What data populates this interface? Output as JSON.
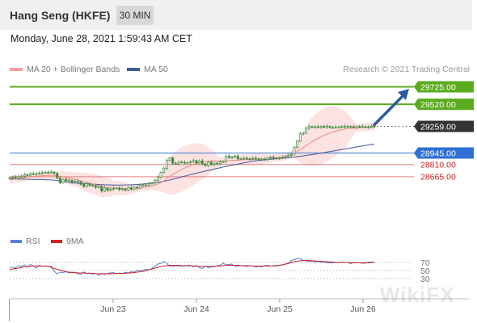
{
  "header": {
    "title": "Hang Seng (HKFE)",
    "interval": "30 MIN",
    "datetime": "Monday, June 28, 2021 1:59:43 AM CET"
  },
  "legend": {
    "ma20_label": "MA 20 + Bollinger Bands",
    "ma50_label": "MA 50",
    "credit": "Research © 2021 Trading Central"
  },
  "rsi_legend": {
    "rsi_label": "RSI",
    "ma_label": "9MA"
  },
  "watermark": "WikiFX",
  "colors": {
    "candle": "#3d8a3d",
    "bollinger": "#f8a5a5",
    "ma20": "#ee8a8a",
    "ma50": "#3d5a99",
    "green_level": "#5aab1e",
    "blue_level": "#5a8fd6",
    "red_level": "#e08080",
    "current_price_bg": "#333333",
    "arrow": "#2b5ba3",
    "rsi": "#5a7fd6",
    "rsi_ma": "#cc2222"
  },
  "chart_data": [
    {
      "type": "line",
      "name": "price",
      "x_ticks": [
        "Jun 23",
        "Jun 24",
        "Jun 25",
        "Jun 26"
      ],
      "ylim": [
        28500,
        29800
      ],
      "levels": [
        {
          "label": "29725.00",
          "value": 29725,
          "kind": "target-resistance"
        },
        {
          "label": "29520.00",
          "value": 29520,
          "kind": "resistance"
        },
        {
          "label": "29259.00",
          "value": 29259,
          "kind": "current-price"
        },
        {
          "label": "28945.00",
          "value": 28945,
          "kind": "pivot"
        },
        {
          "label": "28810.00",
          "value": 28810,
          "kind": "support"
        },
        {
          "label": "28665.00",
          "value": 28665,
          "kind": "support"
        }
      ],
      "close": [
        28652,
        28660,
        28648,
        28670,
        28672,
        28690,
        28682,
        28700,
        28695,
        28702,
        28708,
        28712,
        28718,
        28714,
        28720,
        28706,
        28650,
        28596,
        28636,
        28620,
        28624,
        28601,
        28612,
        28607,
        28575,
        28552,
        28583,
        28564,
        28561,
        28540,
        28549,
        28496,
        28530,
        28505,
        28519,
        28528,
        28533,
        28514,
        28523,
        28508,
        28535,
        28519,
        28543,
        28532,
        28565,
        28569,
        28567,
        28583,
        28591,
        28624,
        28659,
        28716,
        28766,
        28857,
        28888,
        28822,
        28818,
        28840,
        28835,
        28833,
        28833,
        28843,
        28855,
        28827,
        28852,
        28818,
        28797,
        28836,
        28809,
        28825,
        28820,
        28839,
        28846,
        28908,
        28891,
        28899,
        28908,
        28875,
        28880,
        28883,
        28878,
        28874,
        28885,
        28878,
        28869,
        28870,
        28868,
        28888,
        28895,
        28885,
        28882,
        28886,
        28893,
        28906,
        28918,
        28929,
        29012,
        29085,
        29172,
        29179,
        29236,
        29256,
        29250,
        29254,
        29248,
        29260,
        29247,
        29259,
        29246,
        29247,
        29248,
        29254,
        29252,
        29260,
        29253,
        29256,
        29244,
        29257,
        29254,
        29256,
        29252,
        29249,
        29261,
        29259
      ],
      "ma50": [
        28640,
        28640,
        28640,
        28639,
        28638,
        28637,
        28636,
        28635,
        28634,
        28633,
        28632,
        28631,
        28630,
        28629,
        28627,
        28625,
        28620,
        28615,
        28610,
        28605,
        28600,
        28595,
        28590,
        28588,
        28586,
        28584,
        28582,
        28580,
        28578,
        28576,
        28574,
        28572,
        28570,
        28569,
        28568,
        28568,
        28567,
        28567,
        28567,
        28568,
        28569,
        28570,
        28572,
        28574,
        28577,
        28580,
        28583,
        28587,
        28591,
        28595,
        28600,
        28606,
        28612,
        28619,
        28627,
        28636,
        28645,
        28654,
        28663,
        28672,
        28681,
        28690,
        28699,
        28708,
        28716,
        28724,
        28732,
        28740,
        28748,
        28756,
        28764,
        28772,
        28780,
        28787,
        28794,
        28801,
        28808,
        28815,
        28822,
        28829,
        28836,
        28843,
        28849,
        28854,
        28858,
        28862,
        28866,
        28869,
        28872,
        28875,
        28878,
        28881,
        28884,
        28887,
        28890,
        28894,
        28898,
        28902,
        28906,
        28911,
        28916,
        28921,
        28926,
        28932,
        28938,
        28944,
        28950,
        28956,
        28962,
        28968,
        28974,
        28980,
        28986,
        28992,
        28998,
        29004,
        29010,
        29016,
        29022,
        29028,
        29034,
        29040,
        29046,
        29052
      ],
      "ma20": [
        28630,
        28635,
        28640,
        28645,
        28650,
        28655,
        28660,
        28665,
        28668,
        28672,
        28675,
        28678,
        28680,
        28682,
        28683,
        28681,
        28676,
        28670,
        28664,
        28656,
        28650,
        28643,
        28635,
        28628,
        28618,
        28607,
        28597,
        28588,
        28580,
        28571,
        28561,
        28551,
        28546,
        28539,
        28534,
        28530,
        28530,
        28528,
        28526,
        28523,
        28524,
        28523,
        28528,
        28530,
        28534,
        28540,
        28544,
        28551,
        28556,
        28566,
        28580,
        28598,
        28617,
        28646,
        28673,
        28694,
        28712,
        28732,
        28751,
        28767,
        28783,
        28798,
        28812,
        28824,
        28838,
        28843,
        28846,
        28849,
        28851,
        28852,
        28848,
        28848,
        28850,
        28855,
        28856,
        28858,
        28860,
        28861,
        28863,
        28865,
        28866,
        28868,
        28869,
        28872,
        28874,
        28876,
        28878,
        28880,
        28883,
        28886,
        28888,
        28892,
        28898,
        28906,
        28916,
        28928,
        28944,
        28963,
        28985,
        29008,
        29032,
        29055,
        29077,
        29098,
        29117,
        29135,
        29152,
        29167,
        29180,
        29192,
        29203,
        29212,
        29219,
        29226,
        29232,
        29237,
        29240,
        29243,
        29245,
        29247,
        29249,
        29250,
        29251,
        29252
      ]
    },
    {
      "type": "line",
      "name": "RSI",
      "ylim": [
        20,
        80
      ],
      "y_ticks": [
        30,
        50,
        70
      ],
      "rsi": [
        58,
        58,
        57,
        62,
        60,
        64,
        58,
        65,
        61,
        56,
        63,
        60,
        62,
        59,
        61,
        48,
        42,
        46,
        45,
        47,
        44,
        46,
        45,
        42,
        40,
        46,
        43,
        44,
        41,
        43,
        38,
        43,
        40,
        43,
        44,
        45,
        42,
        44,
        42,
        46,
        44,
        47,
        46,
        50,
        51,
        50,
        53,
        52,
        55,
        61,
        66,
        68,
        72,
        68,
        60,
        60,
        62,
        61,
        61,
        61,
        63,
        63,
        59,
        63,
        57,
        55,
        61,
        57,
        59,
        59,
        62,
        63,
        68,
        64,
        65,
        66,
        60,
        61,
        62,
        61,
        60,
        62,
        61,
        59,
        60,
        59,
        62,
        63,
        61,
        61,
        61,
        63,
        64,
        66,
        67,
        75,
        77,
        80,
        79,
        75,
        74,
        72,
        73,
        71,
        73,
        70,
        71,
        69,
        69,
        69,
        70,
        69,
        71,
        70,
        70,
        67,
        70,
        69,
        69,
        68,
        68,
        71,
        71,
        71
      ],
      "rsi_ma": [
        52,
        54,
        55,
        56,
        58,
        59,
        60,
        60,
        61,
        62,
        61,
        61,
        61,
        60,
        58,
        55,
        53,
        51,
        49,
        47,
        46,
        45,
        45,
        44,
        44,
        44,
        43,
        43,
        43,
        42,
        42,
        42,
        42,
        42,
        42,
        42,
        43,
        43,
        43,
        43,
        44,
        44,
        45,
        46,
        47,
        48,
        50,
        52,
        54,
        56,
        58,
        60,
        61,
        62,
        63,
        63,
        63,
        63,
        62,
        62,
        62,
        62,
        61,
        61,
        60,
        60,
        60,
        60,
        60,
        60,
        61,
        61,
        62,
        63,
        63,
        63,
        63,
        63,
        62,
        62,
        62,
        62,
        61,
        61,
        61,
        61,
        61,
        61,
        61,
        62,
        62,
        63,
        64,
        66,
        68,
        70,
        72,
        73,
        74,
        75,
        75,
        75,
        74,
        74,
        73,
        73,
        72,
        72,
        71,
        71,
        70,
        70,
        70,
        70,
        70,
        69,
        69,
        69,
        69,
        69,
        69,
        69,
        70,
        70
      ]
    }
  ]
}
